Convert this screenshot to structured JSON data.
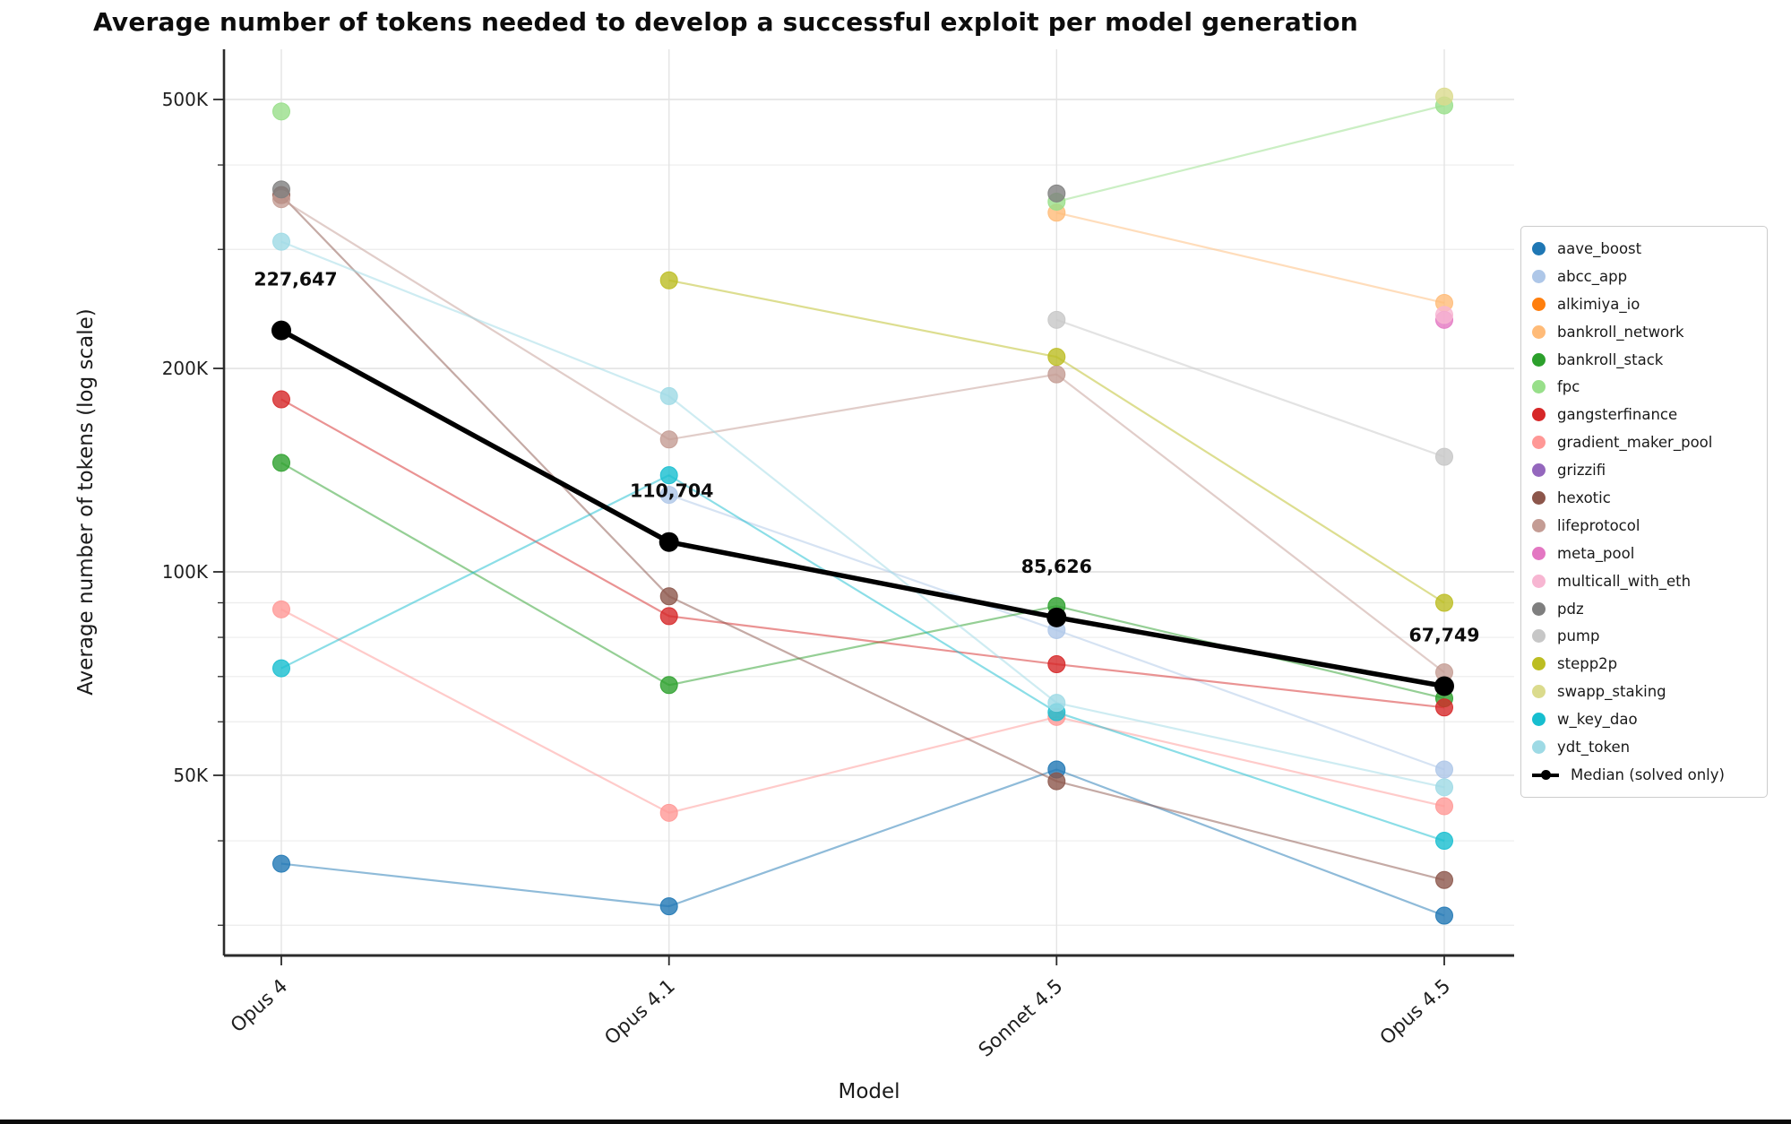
{
  "title": "Average number of tokens needed to develop a successful exploit per model generation",
  "chart_data": {
    "type": "line",
    "title": "Average number of tokens needed to develop a successful exploit per model generation",
    "xlabel": "Model",
    "ylabel": "Average number of tokens (log scale)",
    "x_categories": [
      "Opus 4",
      "Opus 4.1",
      "Sonnet 4.5",
      "Opus 4.5"
    ],
    "y_scale": "log",
    "ylim": [
      27000,
      605000
    ],
    "grid": true,
    "legend_position": "right",
    "y_ticks_labeled": [
      {
        "value": 500000,
        "label": "500K"
      },
      {
        "value": 200000,
        "label": "200K"
      },
      {
        "value": 100000,
        "label": "100K"
      },
      {
        "value": 50000,
        "label": "50K"
      }
    ],
    "y_ticks_minor": [
      400000,
      300000,
      90000,
      80000,
      70000,
      60000,
      40000,
      30000
    ],
    "series": [
      {
        "name": "aave_boost",
        "color": "#1f77b4",
        "values": [
          37000,
          32000,
          51000,
          31000
        ]
      },
      {
        "name": "abcc_app",
        "color": "#aec7e8",
        "values": [
          null,
          130000,
          82000,
          51000
        ]
      },
      {
        "name": "alkimiya_io",
        "color": "#ff7f0e",
        "values": [
          null,
          null,
          null,
          null
        ]
      },
      {
        "name": "bankroll_network",
        "color": "#ffbb78",
        "values": [
          null,
          null,
          340000,
          250000
        ]
      },
      {
        "name": "bankroll_stack",
        "color": "#2ca02c",
        "values": [
          145000,
          68000,
          89000,
          65000
        ]
      },
      {
        "name": "fpc",
        "color": "#98df8a",
        "values": [
          480000,
          null,
          353000,
          490000
        ]
      },
      {
        "name": "gangsterfinance",
        "color": "#d62728",
        "values": [
          180000,
          86000,
          73000,
          63000
        ]
      },
      {
        "name": "gradient_maker_pool",
        "color": "#ff9896",
        "values": [
          88000,
          44000,
          61000,
          45000
        ]
      },
      {
        "name": "grizzifi",
        "color": "#9467bd",
        "values": [
          null,
          null,
          null,
          null
        ]
      },
      {
        "name": "hexotic",
        "color": "#8c564b",
        "values": [
          361000,
          92000,
          49000,
          35000
        ]
      },
      {
        "name": "lifeprotocol",
        "color": "#c49c94",
        "values": [
          356000,
          157000,
          196000,
          71000
        ]
      },
      {
        "name": "meta_pool",
        "color": "#e377c2",
        "values": [
          null,
          null,
          null,
          236000
        ]
      },
      {
        "name": "multicall_with_eth",
        "color": "#f7b6d2",
        "values": [
          null,
          null,
          null,
          240000
        ]
      },
      {
        "name": "pdz",
        "color": "#7f7f7f",
        "values": [
          368000,
          null,
          363000,
          null
        ]
      },
      {
        "name": "pump",
        "color": "#c7c7c7",
        "values": [
          null,
          null,
          236000,
          148000
        ]
      },
      {
        "name": "stepp2p",
        "color": "#bcbd22",
        "values": [
          null,
          270000,
          208000,
          90000
        ]
      },
      {
        "name": "swapp_staking",
        "color": "#dbdb8d",
        "values": [
          null,
          null,
          null,
          505000
        ]
      },
      {
        "name": "w_key_dao",
        "color": "#17becf",
        "values": [
          72000,
          139000,
          62000,
          40000
        ]
      },
      {
        "name": "ydt_token",
        "color": "#9edae5",
        "values": [
          308000,
          182000,
          64000,
          48000
        ]
      }
    ],
    "median": {
      "name": "Median (solved only)",
      "color": "#000000",
      "values": [
        227647,
        110704,
        85626,
        67749
      ],
      "labels": [
        "227,647",
        "110,704",
        "85,626",
        "67,749"
      ]
    }
  }
}
